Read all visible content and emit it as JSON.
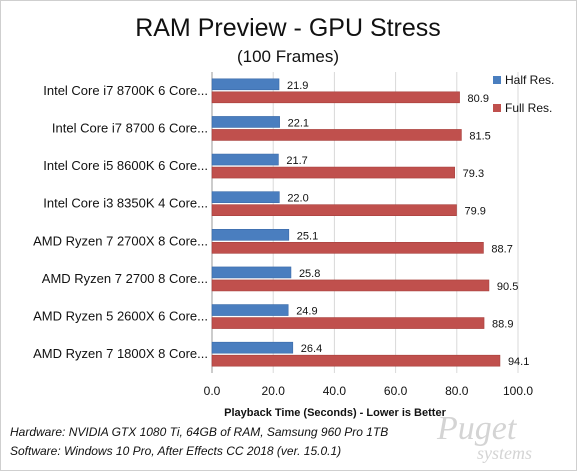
{
  "chart_data": {
    "type": "bar",
    "title": "RAM Preview - GPU Stress",
    "subtitle": "(100 Frames)",
    "xlabel": "Playback  Time (Seconds)  - Lower is Better",
    "categories": [
      "Intel Core i7 8700K 6 Core...",
      "Intel Core i7 8700 6 Core...",
      "Intel Core i5 8600K 6 Core...",
      "Intel Core i3 8350K 4 Core...",
      "AMD Ryzen 7 2700X 8 Core...",
      "AMD Ryzen 7 2700 8 Core...",
      "AMD Ryzen 5 2600X 6 Core...",
      "AMD Ryzen 7 1800X 8 Core..."
    ],
    "series": [
      {
        "name": "Half Res.",
        "color": "#4a7ebf",
        "values": [
          21.9,
          22.1,
          21.7,
          22.0,
          25.1,
          25.8,
          24.9,
          26.4
        ]
      },
      {
        "name": "Full Res.",
        "color": "#c0504d",
        "values": [
          80.9,
          81.5,
          79.3,
          79.9,
          88.7,
          90.5,
          88.9,
          94.1
        ]
      }
    ],
    "data_labels": [
      [
        "21.9",
        "22.1",
        "21.7",
        "22.0",
        "25.1",
        "25.8",
        "24.9",
        "26.4"
      ],
      [
        "80.9",
        "81.5",
        "79.3",
        "79.9",
        "88.7",
        "90.5",
        "88.9",
        "94.1"
      ]
    ],
    "xlim": [
      0,
      100
    ],
    "xticks": [
      "0.0",
      "20.0",
      "40.0",
      "60.0",
      "80.0",
      "100.0"
    ],
    "grid": true,
    "legend": "right"
  },
  "footer": {
    "hardware": "Hardware: NVIDIA GTX 1080 Ti, 64GB of RAM, Samsung 960 Pro 1TB",
    "software": "Software: Windows 10 Pro, After Effects CC 2018 (ver. 15.0.1)"
  },
  "logo": {
    "line1": "Puget",
    "line2": "systems"
  }
}
